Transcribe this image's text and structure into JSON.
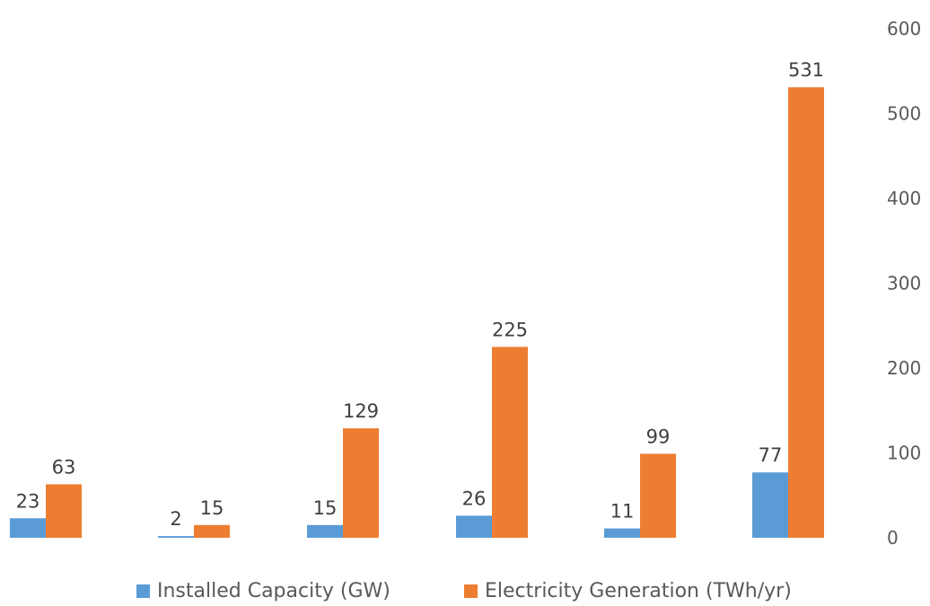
{
  "chart_data": {
    "type": "bar",
    "title": "",
    "xlabel": "",
    "ylabel": "",
    "categories": [
      "",
      "",
      "",
      "",
      "",
      ""
    ],
    "series": [
      {
        "name": "Installed Capacity (GW)",
        "color": "#5b9bd5",
        "values": [
          23,
          2,
          15,
          26,
          11,
          77
        ]
      },
      {
        "name": "Electricity Generation (TWh/yr)",
        "color": "#ed7d31",
        "values": [
          63,
          15,
          129,
          225,
          99,
          531
        ]
      }
    ],
    "y_axis": {
      "side": "right",
      "ylim": [
        0,
        600
      ],
      "ticks": [
        "0",
        "100",
        "200",
        "300",
        "400",
        "500",
        "600"
      ]
    },
    "grid": false,
    "data_labels": true,
    "legend": "bottom"
  }
}
